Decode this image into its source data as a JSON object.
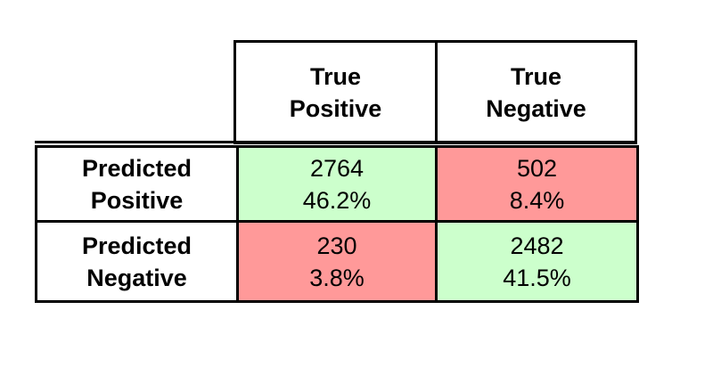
{
  "chart_data": {
    "type": "table",
    "title": "",
    "columns": [
      {
        "line1": "True",
        "line2": "Positive"
      },
      {
        "line1": "True",
        "line2": "Negative"
      }
    ],
    "rows": [
      {
        "line1": "Predicted",
        "line2": "Positive"
      },
      {
        "line1": "Predicted",
        "line2": "Negative"
      }
    ],
    "cells": [
      [
        {
          "count": "2764",
          "percent": "46.2%",
          "color": "#ccffcc"
        },
        {
          "count": "502",
          "percent": "8.4%",
          "color": "#ff9999"
        }
      ],
      [
        {
          "count": "230",
          "percent": "3.8%",
          "color": "#ff9999"
        },
        {
          "count": "2482",
          "percent": "41.5%",
          "color": "#ccffcc"
        }
      ]
    ]
  }
}
